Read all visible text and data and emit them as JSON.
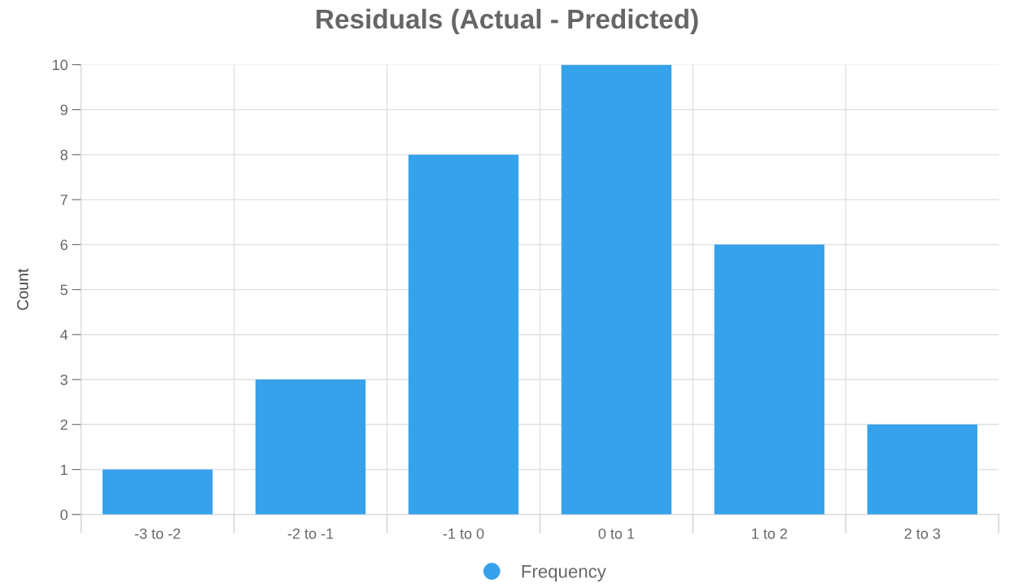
{
  "chart_data": {
    "type": "bar",
    "title": "Residuals (Actual - Predicted)",
    "ylabel": "Count",
    "categories": [
      "-3 to -2",
      "-2 to -1",
      "-1 to 0",
      "0 to 1",
      "1 to 2",
      "2 to 3"
    ],
    "series": [
      {
        "name": "Frequency",
        "color": "#36a2eb",
        "values": [
          1,
          3,
          8,
          10,
          6,
          2
        ]
      }
    ],
    "ylim": [
      0,
      10
    ],
    "yticks": [
      0,
      1,
      2,
      3,
      4,
      5,
      6,
      7,
      8,
      9,
      10
    ],
    "grid": true,
    "legend": "bottom"
  }
}
